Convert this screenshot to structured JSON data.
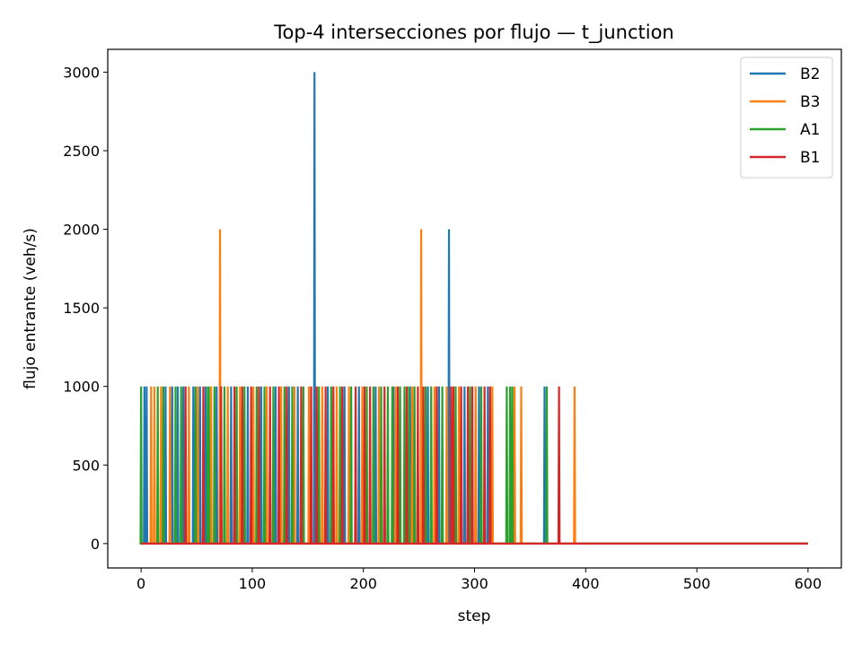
{
  "chart_data": {
    "type": "line",
    "title": "Top-4 intersecciones por flujo — t_junction",
    "xlabel": "step",
    "ylabel": "flujo entrante (veh/s)",
    "xlim": [
      -30,
      630
    ],
    "ylim": [
      -155,
      3145
    ],
    "xticks": [
      0,
      100,
      200,
      300,
      400,
      500,
      600
    ],
    "yticks": [
      0,
      500,
      1000,
      1500,
      2000,
      2500,
      3000
    ],
    "grid": false,
    "legend_position": "top-right",
    "series": [
      {
        "name": "B2",
        "color": "#1f77b4",
        "spikes": [
          [
            3,
            1000
          ],
          [
            5,
            1000
          ],
          [
            22,
            1000
          ],
          [
            28,
            1000
          ],
          [
            33,
            1000
          ],
          [
            38,
            1000
          ],
          [
            47,
            1000
          ],
          [
            53,
            1000
          ],
          [
            58,
            1000
          ],
          [
            68,
            1000
          ],
          [
            81,
            1000
          ],
          [
            96,
            1000
          ],
          [
            108,
            1000
          ],
          [
            121,
            1000
          ],
          [
            133,
            1000
          ],
          [
            141,
            1000
          ],
          [
            156,
            3000
          ],
          [
            168,
            1000
          ],
          [
            183,
            1000
          ],
          [
            196,
            1000
          ],
          [
            211,
            1000
          ],
          [
            227,
            1000
          ],
          [
            242,
            1000
          ],
          [
            258,
            1000
          ],
          [
            268,
            1000
          ],
          [
            277,
            2000
          ],
          [
            291,
            1000
          ],
          [
            304,
            1000
          ],
          [
            312,
            1000
          ],
          [
            363,
            1000
          ]
        ]
      },
      {
        "name": "B3",
        "color": "#ff7f0e",
        "spikes": [
          [
            9,
            1000
          ],
          [
            12,
            1000
          ],
          [
            18,
            1000
          ],
          [
            26,
            1000
          ],
          [
            43,
            1000
          ],
          [
            51,
            1000
          ],
          [
            63,
            1000
          ],
          [
            71,
            2000
          ],
          [
            78,
            1000
          ],
          [
            89,
            1000
          ],
          [
            101,
            1000
          ],
          [
            113,
            1000
          ],
          [
            126,
            1000
          ],
          [
            138,
            1000
          ],
          [
            151,
            1000
          ],
          [
            163,
            1000
          ],
          [
            176,
            1000
          ],
          [
            187,
            1000
          ],
          [
            199,
            1000
          ],
          [
            214,
            1000
          ],
          [
            229,
            1000
          ],
          [
            244,
            1000
          ],
          [
            252,
            2000
          ],
          [
            264,
            1000
          ],
          [
            275,
            1000
          ],
          [
            286,
            1000
          ],
          [
            301,
            1000
          ],
          [
            316,
            1000
          ],
          [
            336,
            1000
          ],
          [
            342,
            1000
          ],
          [
            390,
            1000
          ]
        ]
      },
      {
        "name": "A1",
        "color": "#2ca02c",
        "spikes": [
          [
            0,
            1000
          ],
          [
            15,
            1000
          ],
          [
            20,
            1000
          ],
          [
            31,
            1000
          ],
          [
            36,
            1000
          ],
          [
            49,
            1000
          ],
          [
            60,
            1000
          ],
          [
            61,
            1000
          ],
          [
            66,
            1000
          ],
          [
            75,
            1000
          ],
          [
            86,
            1000
          ],
          [
            93,
            1000
          ],
          [
            104,
            1000
          ],
          [
            111,
            1000
          ],
          [
            119,
            1000
          ],
          [
            129,
            1000
          ],
          [
            136,
            1000
          ],
          [
            146,
            1000
          ],
          [
            160,
            1000
          ],
          [
            171,
            1000
          ],
          [
            179,
            1000
          ],
          [
            189,
            1000
          ],
          [
            203,
            1000
          ],
          [
            209,
            1000
          ],
          [
            216,
            1000
          ],
          [
            222,
            1000
          ],
          [
            226,
            1000
          ],
          [
            233,
            1000
          ],
          [
            237,
            1000
          ],
          [
            241,
            1000
          ],
          [
            246,
            1000
          ],
          [
            256,
            1000
          ],
          [
            261,
            1000
          ],
          [
            271,
            1000
          ],
          [
            283,
            1000
          ],
          [
            296,
            1000
          ],
          [
            306,
            1000
          ],
          [
            329,
            1000
          ],
          [
            332,
            1000
          ],
          [
            334,
            1000
          ],
          [
            365,
            1000
          ]
        ]
      },
      {
        "name": "B1",
        "color": "#d62728",
        "spikes": [
          [
            40,
            1000
          ],
          [
            56,
            1000
          ],
          [
            72,
            1000
          ],
          [
            84,
            1000
          ],
          [
            91,
            1000
          ],
          [
            99,
            1000
          ],
          [
            106,
            1000
          ],
          [
            116,
            1000
          ],
          [
            124,
            1000
          ],
          [
            131,
            1000
          ],
          [
            144,
            1000
          ],
          [
            153,
            1000
          ],
          [
            158,
            1000
          ],
          [
            166,
            1000
          ],
          [
            173,
            1000
          ],
          [
            181,
            1000
          ],
          [
            193,
            1000
          ],
          [
            201,
            1000
          ],
          [
            206,
            1000
          ],
          [
            219,
            1000
          ],
          [
            231,
            1000
          ],
          [
            239,
            1000
          ],
          [
            249,
            1000
          ],
          [
            254,
            1000
          ],
          [
            266,
            1000
          ],
          [
            279,
            1000
          ],
          [
            281,
            1000
          ],
          [
            288,
            1000
          ],
          [
            294,
            1000
          ],
          [
            298,
            1000
          ],
          [
            309,
            1000
          ],
          [
            314,
            1000
          ],
          [
            376,
            1000
          ]
        ]
      }
    ],
    "x_range": [
      0,
      600
    ]
  }
}
